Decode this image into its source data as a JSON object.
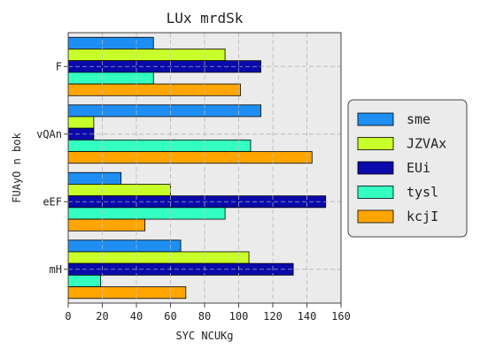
{
  "chart_data": {
    "type": "bar",
    "orientation": "horizontal",
    "title": "LUx  mrdSk",
    "xlabel": "SYC NCUKg",
    "ylabel": "FUAyO n bok",
    "categories": [
      "F",
      "vQAn",
      "eEF",
      "mH"
    ],
    "series": [
      {
        "name": "sme",
        "color": "#1f8ef2",
        "values": [
          50,
          113,
          31,
          66
        ]
      },
      {
        "name": "JZVAx",
        "color": "#c8ff2a",
        "values": [
          92,
          15,
          60,
          106
        ]
      },
      {
        "name": "EUi",
        "color": "#0a0aaa",
        "values": [
          113,
          15,
          151,
          132
        ]
      },
      {
        "name": "tysl",
        "color": "#33ffc0",
        "values": [
          50,
          107,
          92,
          19
        ]
      },
      {
        "name": "kcjI",
        "color": "#ffa500",
        "values": [
          101,
          143,
          45,
          69
        ]
      }
    ],
    "xlim": [
      0,
      160
    ],
    "xticks": [
      "0",
      "20",
      "40",
      "60",
      "80",
      "100",
      "120",
      "140",
      "160"
    ],
    "grid": true,
    "legend_position": "right",
    "plot_background": "#ebebeb"
  }
}
